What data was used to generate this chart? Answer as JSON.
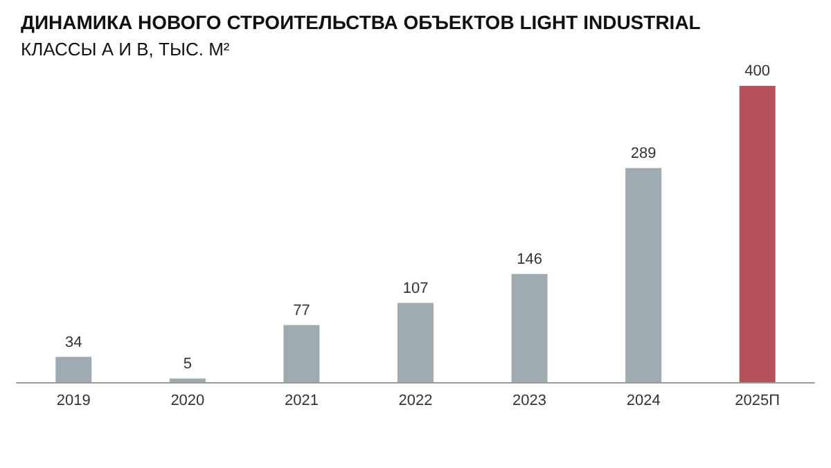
{
  "chart_data": {
    "type": "bar",
    "title": "ДИНАМИКА НОВОГО СТРОИТЕЛЬСТВА ОБЪЕКТОВ LIGHT INDUSTRIAL",
    "subtitle": "КЛАССЫ А И В, ТЫС. М²",
    "categories": [
      "2019",
      "2020",
      "2021",
      "2022",
      "2023",
      "2024",
      "2025П"
    ],
    "values": [
      34,
      5,
      77,
      107,
      146,
      289,
      400
    ],
    "colors": [
      "#9eacb1",
      "#9eacb1",
      "#9eacb1",
      "#9eacb1",
      "#9eacb1",
      "#9eacb1",
      "#b5525b"
    ],
    "data_labels": true
  }
}
